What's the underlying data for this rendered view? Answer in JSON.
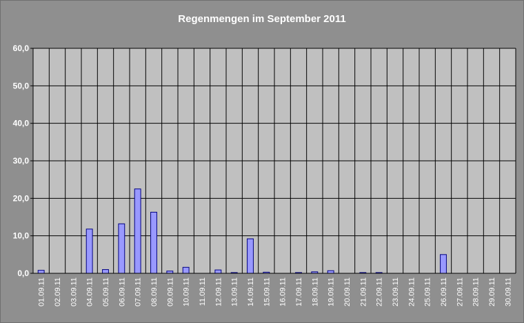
{
  "chart_data": {
    "type": "bar",
    "title": "Regenmengen im September 2011",
    "xlabel": "",
    "ylabel": "",
    "ylim": [
      0,
      60
    ],
    "yticks": [
      "0,0",
      "10,0",
      "20,0",
      "30,0",
      "40,0",
      "50,0",
      "60,0"
    ],
    "grid": true,
    "categories": [
      "01.09.11",
      "02.09.11",
      "03.09.11",
      "04.09.11",
      "05.09.11",
      "06.09.11",
      "07.09.11",
      "08.09.11",
      "09.09.11",
      "10.09.11",
      "11.09.11",
      "12.09.11",
      "13.09.11",
      "14.09.11",
      "15.09.11",
      "16.09.11",
      "17.09.11",
      "18.09.11",
      "19.09.11",
      "20.09.11",
      "21.09.11",
      "22.09.11",
      "23.09.11",
      "24.09.11",
      "25.09.11",
      "26.09.11",
      "27.09.11",
      "28.09.11",
      "29.09.11",
      "30.09.11"
    ],
    "values": [
      0.8,
      0,
      0,
      11.8,
      1.0,
      13.2,
      22.5,
      16.3,
      0.6,
      1.6,
      0,
      0.9,
      0.2,
      9.2,
      0.3,
      0,
      0.2,
      0.4,
      0.7,
      0,
      0.2,
      0.2,
      0,
      0,
      0,
      5.0,
      0,
      0,
      0,
      0
    ],
    "colors": {
      "background": "#8f8f8f",
      "plot_area": "#c0c0c0",
      "bar_fill": "#9999ff",
      "bar_stroke": "#000080",
      "grid": "#000000",
      "text": "#ffffff"
    }
  }
}
